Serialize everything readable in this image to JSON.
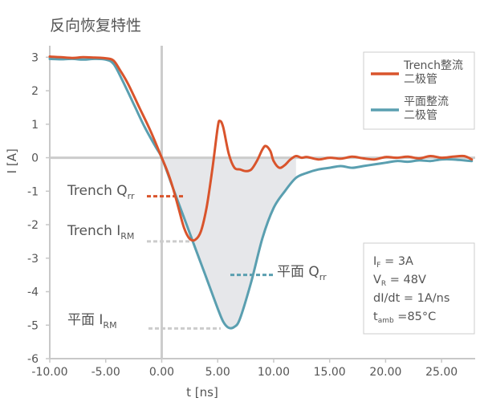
{
  "chart_data": {
    "type": "line",
    "title": "反向恢复特性",
    "xlabel": "t [ns]",
    "ylabel": "I [A]",
    "xlim": [
      -10,
      28
    ],
    "ylim": [
      -6,
      3.2
    ],
    "xticks": [
      -10,
      -5,
      0,
      5,
      10,
      15,
      20,
      25
    ],
    "xtick_labels": [
      "-10.00",
      "-5.00",
      "0.00",
      "5.00",
      "10.00",
      "15.00",
      "20.00",
      "25.00"
    ],
    "yticks": [
      -6,
      -5,
      -4,
      -3,
      -2,
      -1,
      0,
      1,
      2,
      3
    ],
    "ytick_labels": [
      "-6",
      "-5",
      "-4",
      "-3",
      "-2",
      "-1",
      "0",
      "1",
      "2",
      "3"
    ],
    "grid": false,
    "legend_position": "top-right",
    "series": [
      {
        "name": "Trench整流二极管",
        "color": "#d9542c",
        "points": [
          [
            -10,
            3.02
          ],
          [
            -9,
            3.0
          ],
          [
            -8,
            2.98
          ],
          [
            -7,
            3.0
          ],
          [
            -6,
            2.99
          ],
          [
            -5,
            2.97
          ],
          [
            -4.3,
            2.9
          ],
          [
            -3.7,
            2.6
          ],
          [
            -3,
            2.2
          ],
          [
            -2,
            1.5
          ],
          [
            -1,
            0.8
          ],
          [
            0,
            0.0
          ],
          [
            0.5,
            -0.4
          ],
          [
            1,
            -0.9
          ],
          [
            1.5,
            -1.5
          ],
          [
            2,
            -2.1
          ],
          [
            2.5,
            -2.42
          ],
          [
            3,
            -2.45
          ],
          [
            3.5,
            -2.2
          ],
          [
            4,
            -1.5
          ],
          [
            4.5,
            -0.4
          ],
          [
            5,
            0.9
          ],
          [
            5.2,
            1.1
          ],
          [
            5.5,
            0.9
          ],
          [
            6,
            0.1
          ],
          [
            6.5,
            -0.3
          ],
          [
            7,
            -0.35
          ],
          [
            7.5,
            -0.4
          ],
          [
            8,
            -0.35
          ],
          [
            8.5,
            -0.1
          ],
          [
            9,
            0.25
          ],
          [
            9.3,
            0.35
          ],
          [
            9.7,
            0.2
          ],
          [
            10,
            -0.1
          ],
          [
            10.5,
            -0.3
          ],
          [
            11,
            -0.22
          ],
          [
            11.5,
            -0.05
          ],
          [
            12,
            0.05
          ],
          [
            12.5,
            0.0
          ],
          [
            13,
            0.02
          ],
          [
            14,
            -0.05
          ],
          [
            15,
            0.0
          ],
          [
            16,
            -0.03
          ],
          [
            17,
            0.03
          ],
          [
            18,
            -0.02
          ],
          [
            19,
            -0.05
          ],
          [
            20,
            0.02
          ],
          [
            21,
            0.0
          ],
          [
            22,
            0.03
          ],
          [
            23,
            -0.02
          ],
          [
            24,
            0.05
          ],
          [
            25,
            0.0
          ],
          [
            26,
            0.03
          ],
          [
            27,
            0.05
          ],
          [
            27.7,
            -0.05
          ]
        ]
      },
      {
        "name": "平面整流二极管",
        "color": "#5a9fb0",
        "points": [
          [
            -10,
            2.95
          ],
          [
            -9,
            2.94
          ],
          [
            -8,
            2.95
          ],
          [
            -7,
            2.93
          ],
          [
            -6,
            2.95
          ],
          [
            -5,
            2.93
          ],
          [
            -4.3,
            2.8
          ],
          [
            -3.5,
            2.3
          ],
          [
            -2.5,
            1.6
          ],
          [
            -1.5,
            0.9
          ],
          [
            -0.5,
            0.3
          ],
          [
            0,
            0.0
          ],
          [
            1,
            -0.9
          ],
          [
            2,
            -1.8
          ],
          [
            3,
            -2.7
          ],
          [
            4,
            -3.6
          ],
          [
            5,
            -4.5
          ],
          [
            5.5,
            -4.9
          ],
          [
            6,
            -5.08
          ],
          [
            6.5,
            -5.05
          ],
          [
            7,
            -4.8
          ],
          [
            8,
            -3.7
          ],
          [
            9,
            -2.4
          ],
          [
            10,
            -1.5
          ],
          [
            11,
            -1.0
          ],
          [
            12,
            -0.6
          ],
          [
            13,
            -0.45
          ],
          [
            14,
            -0.35
          ],
          [
            15,
            -0.3
          ],
          [
            16,
            -0.25
          ],
          [
            17,
            -0.3
          ],
          [
            18,
            -0.25
          ],
          [
            19,
            -0.2
          ],
          [
            20,
            -0.15
          ],
          [
            21,
            -0.1
          ],
          [
            22,
            -0.12
          ],
          [
            23,
            -0.08
          ],
          [
            24,
            -0.1
          ],
          [
            25,
            -0.05
          ],
          [
            26,
            -0.05
          ],
          [
            27,
            -0.08
          ],
          [
            27.7,
            -0.1
          ]
        ]
      }
    ],
    "annotations": {
      "trench_qrr": {
        "label": "Trench Q",
        "sub": "rr",
        "marker_color": "#d9542c",
        "y": -1.15
      },
      "trench_irm": {
        "label": "Trench I",
        "sub": "RM",
        "marker_color": "#cccccc",
        "y": -2.5
      },
      "planar_qrr": {
        "label": "平面 Q",
        "sub": "rr",
        "marker_color": "#5a9fb0",
        "y": -3.5
      },
      "planar_irm": {
        "label": "平面 I",
        "sub": "RM",
        "marker_color": "#cccccc",
        "y": -5.1
      }
    },
    "conditions": [
      {
        "main": "I",
        "sub": "F",
        "rest": " = 3A"
      },
      {
        "main": "V",
        "sub": "R",
        "rest": " = 48V"
      },
      {
        "main": "dI/dt = 1A/ns",
        "sub": "",
        "rest": ""
      },
      {
        "main": "t",
        "sub": "amb",
        "rest": " =85°C"
      }
    ],
    "shaded_region_color": "#e6e7ea"
  }
}
